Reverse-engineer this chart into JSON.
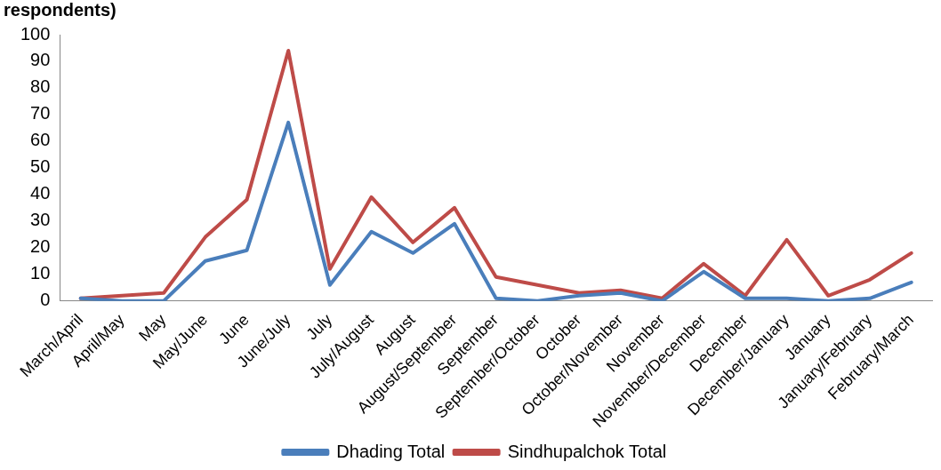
{
  "chart_data": {
    "type": "line",
    "title": "respondents)",
    "categories": [
      "March/April",
      "April/May",
      "May",
      "May/June",
      "June",
      "June/July",
      "July",
      "July/August",
      "August",
      "August/September",
      "September",
      "September/October",
      "October",
      "October/November",
      "November",
      "November/December",
      "December",
      "December/January",
      "January",
      "January/February",
      "February/March"
    ],
    "series": [
      {
        "name": "Dhading Total",
        "color": "#4a7ebb",
        "values": [
          1,
          0,
          0,
          15,
          19,
          67,
          6,
          26,
          18,
          29,
          1,
          0,
          2,
          3,
          0,
          11,
          1,
          1,
          0,
          1,
          7
        ]
      },
      {
        "name": "Sindhupalchok Total",
        "color": "#be4b48",
        "values": [
          1,
          2,
          3,
          24,
          38,
          94,
          12,
          39,
          22,
          35,
          9,
          6,
          3,
          4,
          1,
          14,
          2,
          23,
          2,
          8,
          18
        ]
      }
    ],
    "ylim": [
      0,
      100
    ],
    "yticks": [
      0,
      10,
      20,
      30,
      40,
      50,
      60,
      70,
      80,
      90,
      100
    ],
    "grid": false,
    "legend": "bottom",
    "marker": "none",
    "line_style": "solid"
  }
}
